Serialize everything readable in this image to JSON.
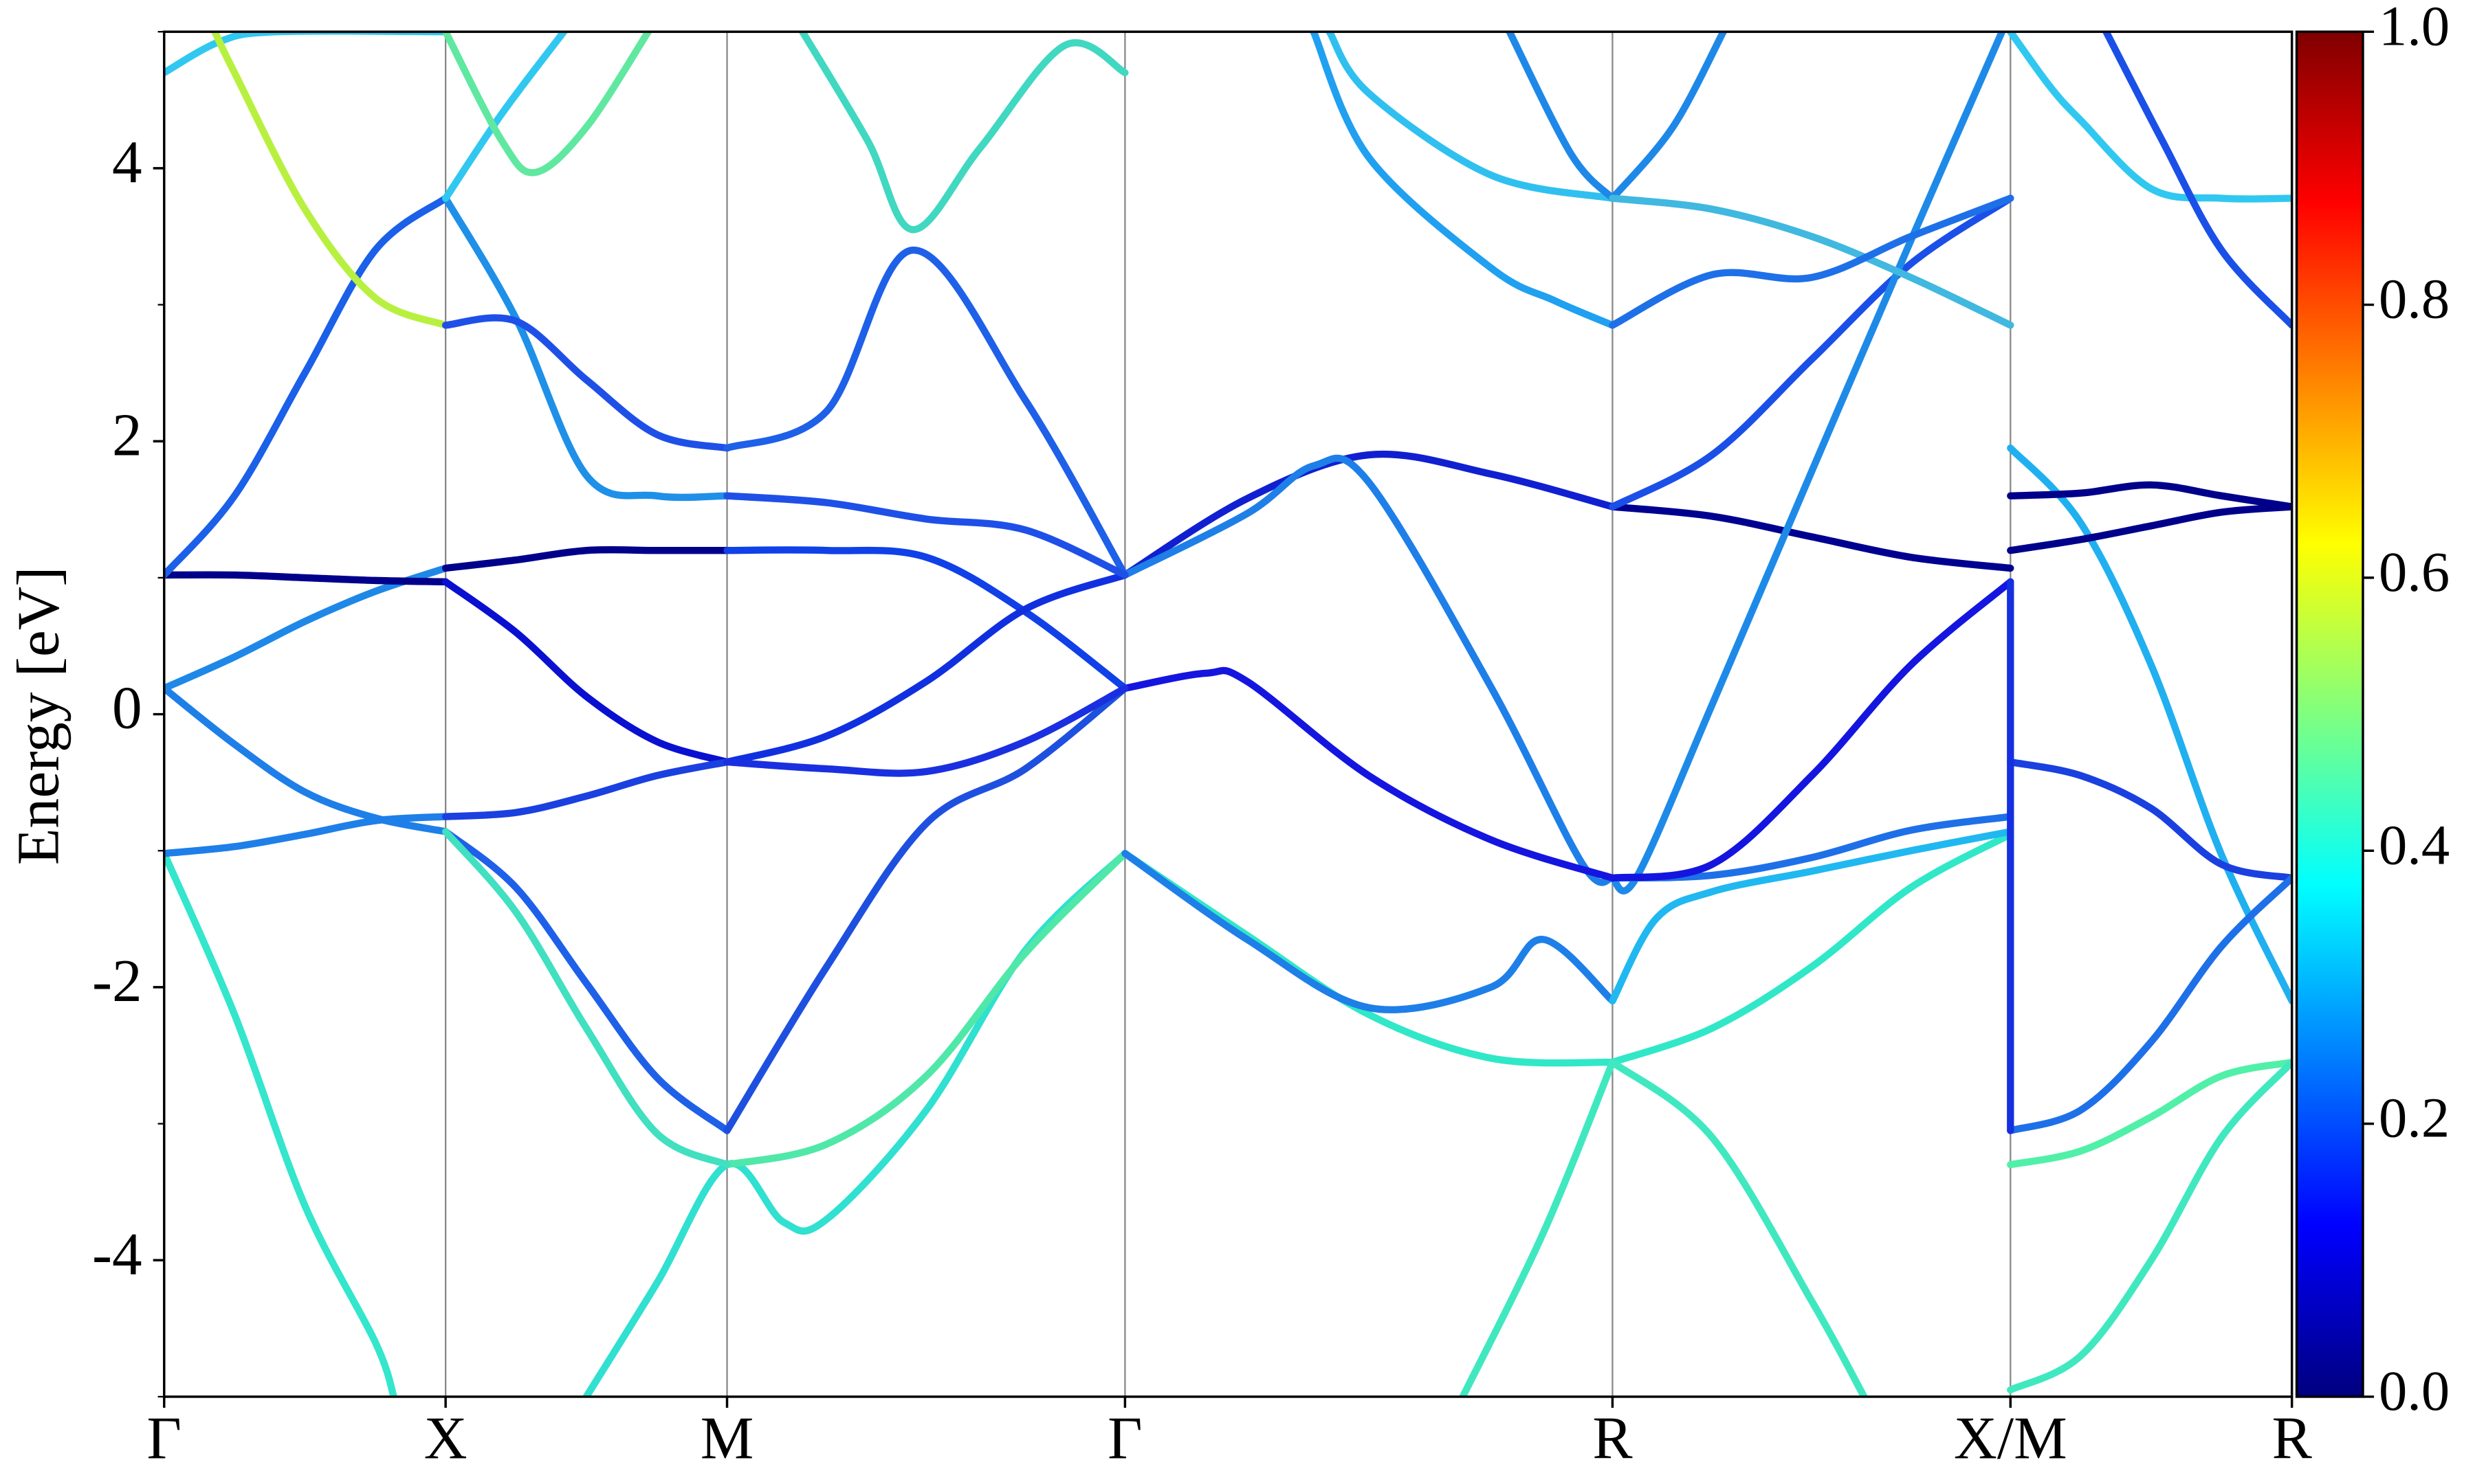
{
  "chart_data": {
    "type": "line",
    "y_label": "Energy [eV]",
    "xlim": [
      0,
      3.78
    ],
    "ylim": [
      -5,
      5
    ],
    "xticks": [
      {
        "value": 0,
        "label": "Γ"
      },
      {
        "value": 0.5,
        "label": "X"
      },
      {
        "value": 1.0,
        "label": "M"
      },
      {
        "value": 1.707,
        "label": "Γ"
      },
      {
        "value": 2.573,
        "label": "R"
      },
      {
        "value": 3.28,
        "label": "X/M"
      },
      {
        "value": 3.78,
        "label": "R"
      }
    ],
    "yticks": [
      -4,
      -2,
      0,
      2,
      4
    ],
    "yminorticks": [
      -5,
      -3,
      -1,
      1,
      3,
      5
    ],
    "xgrid": true,
    "colormap": "jet",
    "clim": [
      0,
      1
    ],
    "colorbar_ticks": [
      {
        "value": 0,
        "label": "0.0"
      },
      {
        "value": 0.2,
        "label": "0.2"
      },
      {
        "value": 0.4,
        "label": "0.4"
      },
      {
        "value": 0.6,
        "label": "0.6"
      },
      {
        "value": 0.8,
        "label": "0.8"
      },
      {
        "value": 1,
        "label": "1.0"
      }
    ],
    "series": [
      {
        "color": "#33e6cc",
        "x": [
          0,
          0.125,
          0.25,
          0.375,
          0.408
        ],
        "values": [
          -1.02,
          -2.2,
          -3.6,
          -4.6,
          -5
        ]
      },
      {
        "color": "#1e7fe8",
        "x": [
          0,
          0.125,
          0.25,
          0.375,
          0.5
        ],
        "values": [
          -1.02,
          -0.97,
          -0.88,
          -0.78,
          -0.75
        ]
      },
      {
        "color": "#1e7fe8",
        "x": [
          0,
          0.125,
          0.25,
          0.375,
          0.5
        ],
        "values": [
          0.19,
          -0.22,
          -0.57,
          -0.76,
          -0.86
        ]
      },
      {
        "color": "#1e88e8",
        "x": [
          0,
          0.125,
          0.25,
          0.375,
          0.5
        ],
        "values": [
          0.19,
          0.42,
          0.68,
          0.9,
          1.07
        ]
      },
      {
        "color": "#00008b",
        "x": [
          0.5,
          0.625,
          0.75,
          0.875,
          1
        ],
        "values": [
          1.07,
          1.13,
          1.2,
          1.2,
          1.2
        ]
      },
      {
        "color": "#1040e8",
        "x": [
          1,
          1.177,
          1.354,
          1.53,
          1.707
        ],
        "values": [
          1.2,
          1.2,
          1.15,
          0.75,
          0.19
        ]
      },
      {
        "color": "#00008b",
        "x": [
          0,
          0.125,
          0.25,
          0.375,
          0.5
        ],
        "values": [
          1.02,
          1.02,
          1.0,
          0.98,
          0.97
        ]
      },
      {
        "color": "#0a10d0",
        "x": [
          0.5,
          0.625,
          0.75,
          0.875,
          1
        ],
        "values": [
          0.97,
          0.6,
          0.13,
          -0.2,
          -0.35
        ]
      },
      {
        "color": "#1030e0",
        "x": [
          1,
          1.177,
          1.354,
          1.53,
          1.707
        ],
        "values": [
          -0.35,
          -0.16,
          0.24,
          0.77,
          1.02
        ]
      },
      {
        "color": "#1020d0",
        "x": [
          1.707,
          1.924,
          2.14,
          2.357,
          2.573
        ],
        "values": [
          1.02,
          1.58,
          1.9,
          1.76,
          1.52
        ]
      },
      {
        "color": "#000090",
        "x": [
          2.573,
          2.75,
          2.927,
          3.103,
          3.28
        ],
        "values": [
          1.52,
          1.45,
          1.3,
          1.15,
          1.07
        ]
      },
      {
        "color": "#1a50e8",
        "x": [
          2.573,
          2.75,
          2.927,
          3.103,
          3.28
        ],
        "values": [
          1.52,
          1.9,
          2.6,
          3.3,
          3.78
        ]
      },
      {
        "color": "#1e7fe8",
        "x": [
          1.707,
          1.924,
          2.042,
          2.14,
          2.357,
          2.52,
          2.573
        ],
        "values": [
          1.02,
          1.47,
          1.82,
          1.7,
          0.2,
          -1.1,
          -1.2
        ]
      },
      {
        "color": "#1e8ae8",
        "x": [
          2.573,
          2.615,
          2.75,
          2.927,
          3.103,
          3.265
        ],
        "values": [
          -1.2,
          -1.2,
          0.07,
          1.78,
          3.47,
          5.0
        ]
      },
      {
        "color": "#1515e0",
        "x": [
          1.707,
          1.85,
          1.924,
          2.14,
          2.357,
          2.573
        ],
        "values": [
          0.19,
          0.3,
          0.24,
          -0.45,
          -0.92,
          -1.2
        ]
      },
      {
        "color": "#1e70e8",
        "x": [
          2.573,
          2.75,
          2.927,
          3.103,
          3.28
        ],
        "values": [
          -1.2,
          -1.18,
          -1.05,
          -0.85,
          -0.75
        ]
      },
      {
        "color": "#1515e0",
        "x": [
          2.573,
          2.75,
          2.927,
          3.103,
          3.28
        ],
        "values": [
          -1.2,
          -1.1,
          -0.45,
          0.36,
          0.97
        ]
      },
      {
        "color": "#30e0d0",
        "x": [
          0.75,
          0.875,
          1,
          1.1,
          1.177,
          1.354,
          1.53,
          1.707
        ],
        "values": [
          -5,
          -4.17,
          -3.3,
          -3.72,
          -3.7,
          -2.9,
          -1.73,
          -1.02
        ]
      },
      {
        "color": "#30e8c8",
        "x": [
          1.707,
          1.924,
          2.14,
          2.357,
          2.573
        ],
        "values": [
          -1.02,
          -1.62,
          -2.2,
          -2.52,
          -2.55
        ]
      },
      {
        "color": "#30e8c8",
        "x": [
          2.573,
          2.75,
          2.927,
          3.103,
          3.28
        ],
        "values": [
          -2.55,
          -2.3,
          -1.85,
          -1.27,
          -0.88
        ]
      },
      {
        "color": "#50e8a8",
        "x": [
          1,
          1.177,
          1.354,
          1.53,
          1.707
        ],
        "values": [
          -3.3,
          -3.15,
          -2.65,
          -1.75,
          -1.02
        ]
      },
      {
        "color": "#1e7fe8",
        "x": [
          1.707,
          1.924,
          2.14,
          2.357,
          2.45,
          2.573
        ],
        "values": [
          -1.02,
          -1.65,
          -2.15,
          -2.0,
          -1.65,
          -2.1
        ]
      },
      {
        "color": "#20b8f0",
        "x": [
          2.573,
          2.65,
          2.75,
          2.927,
          3.103,
          3.28
        ],
        "values": [
          -2.1,
          -1.5,
          -1.3,
          -1.15,
          -1.0,
          -0.86
        ]
      },
      {
        "color": "#1e60e8",
        "x": [
          0.5,
          0.625,
          0.75,
          0.875,
          1
        ],
        "values": [
          -0.86,
          -1.27,
          -1.97,
          -2.66,
          -3.05
        ]
      },
      {
        "color": "#40e0c0",
        "x": [
          0.5,
          0.625,
          0.75,
          0.875,
          1
        ],
        "values": [
          -0.86,
          -1.45,
          -2.3,
          -3.07,
          -3.3
        ]
      },
      {
        "color": "#1a40e0",
        "x": [
          0.5,
          0.625,
          0.75,
          0.875,
          1
        ],
        "values": [
          -0.75,
          -0.72,
          -0.6,
          -0.45,
          -0.35
        ]
      },
      {
        "color": "#1e50e0",
        "x": [
          1,
          1.177,
          1.354,
          1.53,
          1.707
        ],
        "values": [
          -3.05,
          -1.85,
          -0.8,
          -0.4,
          0.19
        ]
      },
      {
        "color": "#1a30e0",
        "x": [
          1,
          1.177,
          1.354,
          1.53,
          1.707
        ],
        "values": [
          -0.35,
          -0.4,
          -0.42,
          -0.2,
          0.19
        ]
      },
      {
        "color": "#1a60e8",
        "x": [
          0,
          0.125,
          0.25,
          0.375,
          0.5
        ],
        "values": [
          1.02,
          1.6,
          2.5,
          3.4,
          3.78
        ]
      },
      {
        "color": "#30c8f0",
        "x": [
          0,
          0.1,
          0.2,
          0.5
        ],
        "values": [
          4.7,
          4.93,
          5,
          5
        ]
      },
      {
        "color": "#b8f040",
        "x": [
          0.09,
          0.125,
          0.25,
          0.375,
          0.5
        ],
        "values": [
          5,
          4.7,
          3.7,
          3.05,
          2.85
        ]
      },
      {
        "color": "#1e90e8",
        "x": [
          0.5,
          0.625,
          0.75,
          0.875,
          1
        ],
        "values": [
          3.78,
          2.9,
          1.75,
          1.6,
          1.6
        ]
      },
      {
        "color": "#1e50e8",
        "x": [
          0.5,
          0.625,
          0.75,
          0.875,
          1
        ],
        "values": [
          2.85,
          2.88,
          2.45,
          2.05,
          1.95
        ]
      },
      {
        "color": "#30c8f0",
        "x": [
          0.5,
          0.6,
          0.71
        ],
        "values": [
          3.78,
          4.4,
          5
        ]
      },
      {
        "color": "#60e8a0",
        "x": [
          0.5,
          0.6,
          0.66,
          0.75,
          0.86
        ],
        "values": [
          5,
          4.2,
          3.97,
          4.3,
          5
        ]
      },
      {
        "color": "#1e60e8",
        "x": [
          1,
          1.177,
          1.33,
          1.53,
          1.707
        ],
        "values": [
          1.95,
          2.22,
          3.4,
          2.3,
          1.02
        ]
      },
      {
        "color": "#1e50e8",
        "x": [
          1,
          1.177,
          1.354,
          1.53,
          1.707
        ],
        "values": [
          1.6,
          1.55,
          1.43,
          1.35,
          1.02
        ]
      },
      {
        "color": "#40d8c0",
        "x": [
          1.134,
          1.25,
          1.33,
          1.45,
          1.6,
          1.707
        ],
        "values": [
          5,
          4.2,
          3.55,
          4.15,
          4.9,
          4.7
        ]
      },
      {
        "color": "#20a0f0",
        "x": [
          2.042,
          2.14,
          2.357,
          2.47,
          2.573
        ],
        "values": [
          5,
          4.08,
          3.27,
          3.03,
          2.85
        ]
      },
      {
        "color": "#30c0f0",
        "x": [
          2.07,
          2.14,
          2.357,
          2.573
        ],
        "values": [
          5,
          4.55,
          3.95,
          3.78
        ]
      },
      {
        "color": "#1e88e8",
        "x": [
          2.39,
          2.5,
          2.573
        ],
        "values": [
          5,
          4.1,
          3.78
        ]
      },
      {
        "color": "#1e88e8",
        "x": [
          2.573,
          2.68,
          2.77
        ],
        "values": [
          3.78,
          4.3,
          5
        ]
      },
      {
        "color": "#40b8e0",
        "x": [
          2.573,
          2.75,
          2.927,
          3.103,
          3.28
        ],
        "values": [
          3.78,
          3.7,
          3.5,
          3.2,
          2.85
        ]
      },
      {
        "color": "#1e70e8",
        "x": [
          2.573,
          2.75,
          2.927,
          3.103,
          3.28
        ],
        "values": [
          2.85,
          3.22,
          3.2,
          3.5,
          3.78
        ]
      },
      {
        "color": "#20b0f0",
        "x": [
          3.28,
          3.405,
          3.53,
          3.655,
          3.78
        ],
        "values": [
          1.95,
          1.4,
          0.36,
          -1.03,
          -2.1
        ]
      },
      {
        "color": "#00008b",
        "x": [
          3.28,
          3.405,
          3.53,
          3.655,
          3.78
        ],
        "values": [
          1.6,
          1.62,
          1.68,
          1.6,
          1.52
        ]
      },
      {
        "color": "#00008b",
        "x": [
          3.28,
          3.405,
          3.53,
          3.655,
          3.78
        ],
        "values": [
          1.2,
          1.28,
          1.38,
          1.48,
          1.52
        ]
      },
      {
        "color": "#1a40e0",
        "x": [
          3.28,
          3.405,
          3.53,
          3.655,
          3.78
        ],
        "values": [
          -0.35,
          -0.45,
          -0.69,
          -1.1,
          -1.2
        ]
      },
      {
        "color": "#1e70e8",
        "x": [
          3.28,
          3.405,
          3.53,
          3.655,
          3.78
        ],
        "values": [
          -3.05,
          -2.9,
          -2.4,
          -1.7,
          -1.2
        ]
      },
      {
        "color": "#50f0a8",
        "x": [
          3.28,
          3.405,
          3.53,
          3.655,
          3.78
        ],
        "values": [
          -3.3,
          -3.2,
          -2.95,
          -2.65,
          -2.55
        ]
      },
      {
        "color": "#40e8c0",
        "x": [
          3.28,
          3.405,
          3.53,
          3.655,
          3.78
        ],
        "values": [
          -4.95,
          -4.7,
          -4.0,
          -3.1,
          -2.55
        ]
      },
      {
        "color": "#30c8f0",
        "x": [
          3.28,
          3.35,
          3.405,
          3.53,
          3.655,
          3.78
        ],
        "values": [
          5,
          4.6,
          4.35,
          3.85,
          3.78,
          3.78
        ]
      },
      {
        "color": "#1a50e8",
        "x": [
          3.45,
          3.55,
          3.655,
          3.78
        ],
        "values": [
          5,
          4.2,
          3.4,
          2.85
        ]
      },
      {
        "color": "#1530e0",
        "x": [
          3.28,
          3.28
        ],
        "values": [
          -3.05,
          0.97
        ]
      },
      {
        "color": "#40e8c0",
        "x": [
          2.307,
          2.45,
          2.573
        ],
        "values": [
          -5,
          -3.8,
          -2.55
        ]
      },
      {
        "color": "#40e8c0",
        "x": [
          2.573,
          2.75,
          2.927,
          3.02
        ],
        "values": [
          -2.55,
          -3.1,
          -4.3,
          -5
        ]
      }
    ]
  }
}
